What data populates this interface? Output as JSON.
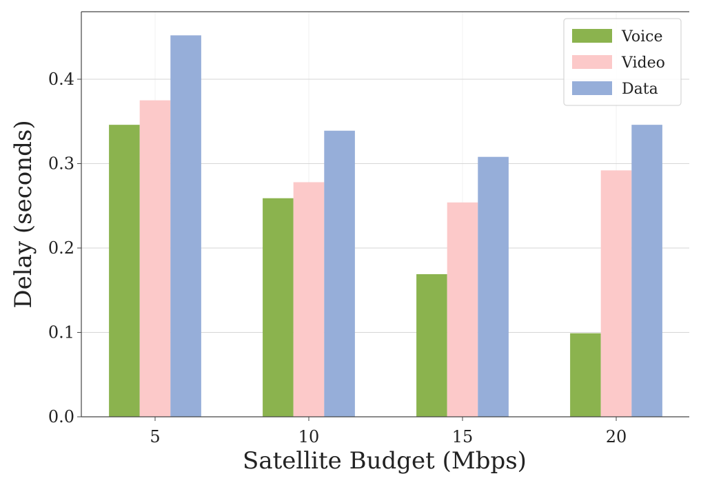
{
  "chart_data": {
    "type": "bar",
    "title": "",
    "xlabel": "Satellite Budget (Mbps)",
    "ylabel": "Delay (seconds)",
    "categories": [
      "5",
      "10",
      "15",
      "20"
    ],
    "series": [
      {
        "name": "Voice",
        "color": "#8bb34e",
        "values": [
          0.346,
          0.259,
          0.169,
          0.099
        ]
      },
      {
        "name": "Video",
        "color": "#fcc9c9",
        "values": [
          0.375,
          0.278,
          0.254,
          0.292
        ]
      },
      {
        "name": "Data",
        "color": "#96aed9",
        "values": [
          0.452,
          0.339,
          0.308,
          0.346
        ]
      }
    ],
    "ylim": [
      0,
      0.48
    ],
    "yticks": [
      0.0,
      0.1,
      0.2,
      0.3,
      0.4
    ],
    "ytick_labels": [
      "0.0",
      "0.1",
      "0.2",
      "0.3",
      "0.4"
    ],
    "grid": true,
    "legend_position": "top-right"
  }
}
